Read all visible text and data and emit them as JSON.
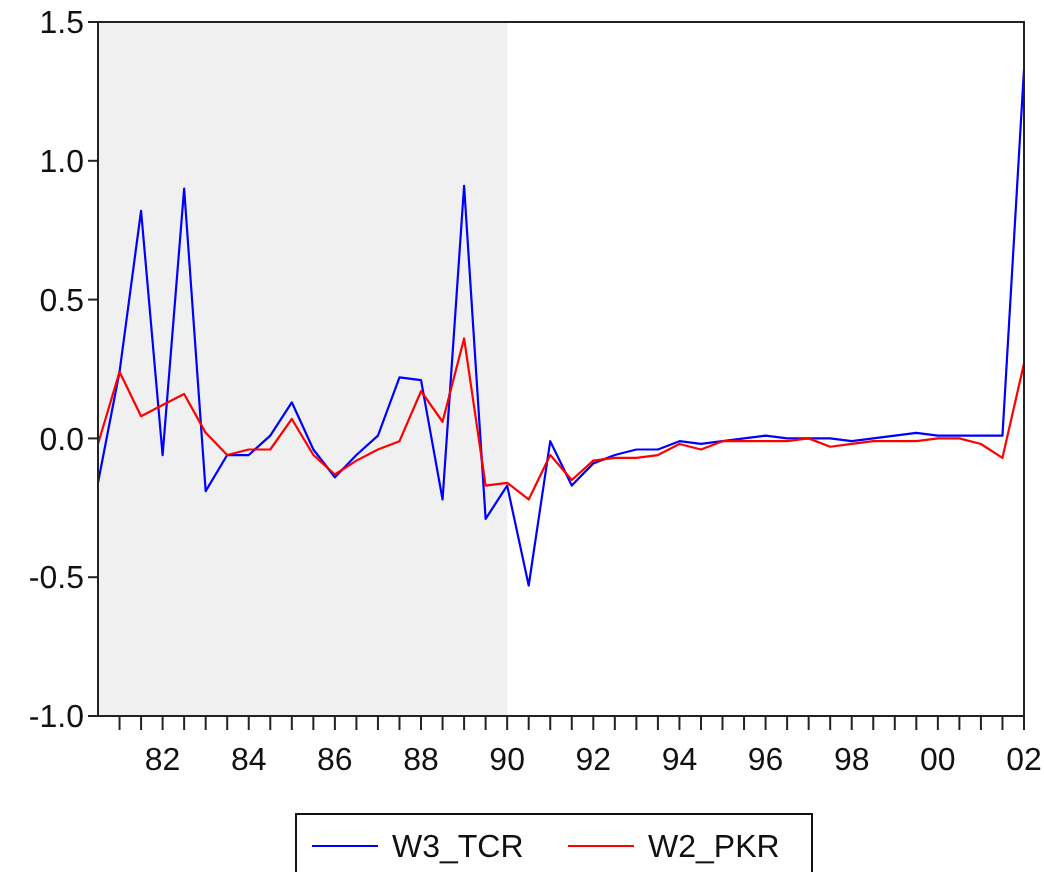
{
  "chart_data": {
    "type": "line",
    "x": [
      1980.5,
      1981,
      1981.5,
      1982,
      1982.5,
      1983,
      1983.5,
      1984,
      1984.5,
      1985,
      1985.5,
      1986,
      1986.5,
      1987,
      1987.5,
      1988,
      1988.5,
      1989,
      1989.5,
      1990,
      1990.5,
      1991,
      1991.5,
      1992,
      1992.5,
      1993,
      1993.5,
      1994,
      1994.5,
      1995,
      1995.5,
      1996,
      1996.5,
      1997,
      1997.5,
      1998,
      1998.5,
      1999,
      1999.5,
      2000,
      2000.5,
      2001,
      2001.5,
      2002
    ],
    "series": [
      {
        "name": "W3_TCR",
        "color": "#0000ff",
        "values": [
          -0.16,
          0.24,
          0.82,
          -0.06,
          0.9,
          -0.19,
          -0.06,
          -0.06,
          0.01,
          0.13,
          -0.04,
          -0.14,
          -0.06,
          0.01,
          0.22,
          0.21,
          -0.22,
          0.91,
          -0.29,
          -0.17,
          -0.53,
          -0.01,
          -0.17,
          -0.09,
          -0.06,
          -0.04,
          -0.04,
          -0.01,
          -0.02,
          -0.01,
          0.0,
          0.01,
          0.0,
          0.0,
          0.0,
          -0.01,
          0.0,
          0.01,
          0.02,
          0.01,
          0.01,
          0.01,
          0.01,
          1.33
        ]
      },
      {
        "name": "W2_PKR",
        "color": "#ff0000",
        "values": [
          -0.02,
          0.24,
          0.08,
          0.12,
          0.16,
          0.02,
          -0.06,
          -0.04,
          -0.04,
          0.07,
          -0.06,
          -0.13,
          -0.08,
          -0.04,
          -0.01,
          0.17,
          0.06,
          0.36,
          -0.17,
          -0.16,
          -0.22,
          -0.06,
          -0.15,
          -0.08,
          -0.07,
          -0.07,
          -0.06,
          -0.02,
          -0.04,
          -0.01,
          -0.01,
          -0.01,
          -0.01,
          0.0,
          -0.03,
          -0.02,
          -0.01,
          -0.01,
          -0.01,
          0.0,
          0.0,
          -0.02,
          -0.07,
          0.27
        ]
      }
    ],
    "xlim": [
      1980.5,
      2002
    ],
    "xticks": [
      {
        "value": 1981,
        "label": null
      },
      {
        "value": 1981.5,
        "label": null
      },
      {
        "value": 1982,
        "label": "82"
      },
      {
        "value": 1982.5,
        "label": null
      },
      {
        "value": 1983,
        "label": null
      },
      {
        "value": 1983.5,
        "label": null
      },
      {
        "value": 1984,
        "label": "84"
      },
      {
        "value": 1984.5,
        "label": null
      },
      {
        "value": 1985,
        "label": null
      },
      {
        "value": 1985.5,
        "label": null
      },
      {
        "value": 1986,
        "label": "86"
      },
      {
        "value": 1986.5,
        "label": null
      },
      {
        "value": 1987,
        "label": null
      },
      {
        "value": 1987.5,
        "label": null
      },
      {
        "value": 1988,
        "label": "88"
      },
      {
        "value": 1988.5,
        "label": null
      },
      {
        "value": 1989,
        "label": null
      },
      {
        "value": 1989.5,
        "label": null
      },
      {
        "value": 1990,
        "label": "90"
      },
      {
        "value": 1990.5,
        "label": null
      },
      {
        "value": 1991,
        "label": null
      },
      {
        "value": 1991.5,
        "label": null
      },
      {
        "value": 1992,
        "label": "92"
      },
      {
        "value": 1992.5,
        "label": null
      },
      {
        "value": 1993,
        "label": null
      },
      {
        "value": 1993.5,
        "label": null
      },
      {
        "value": 1994,
        "label": "94"
      },
      {
        "value": 1994.5,
        "label": null
      },
      {
        "value": 1995,
        "label": null
      },
      {
        "value": 1995.5,
        "label": null
      },
      {
        "value": 1996,
        "label": "96"
      },
      {
        "value": 1996.5,
        "label": null
      },
      {
        "value": 1997,
        "label": null
      },
      {
        "value": 1997.5,
        "label": null
      },
      {
        "value": 1998,
        "label": "98"
      },
      {
        "value": 1998.5,
        "label": null
      },
      {
        "value": 1999,
        "label": null
      },
      {
        "value": 1999.5,
        "label": null
      },
      {
        "value": 2000,
        "label": "00"
      },
      {
        "value": 2000.5,
        "label": null
      },
      {
        "value": 2001,
        "label": null
      },
      {
        "value": 2001.5,
        "label": null
      },
      {
        "value": 2002,
        "label": "02"
      }
    ],
    "ylim": [
      -1.0,
      1.5
    ],
    "yticks": [
      {
        "value": -1.0,
        "label": "-1.0"
      },
      {
        "value": -0.5,
        "label": "-0.5"
      },
      {
        "value": 0.0,
        "label": "0.0"
      },
      {
        "value": 0.5,
        "label": "0.5"
      },
      {
        "value": 1.0,
        "label": "1.0"
      },
      {
        "value": 1.5,
        "label": "1.5"
      }
    ],
    "bands": [
      {
        "axis": "x",
        "from": 1980.5,
        "to": 1990,
        "color": "#f0f0f0"
      }
    ],
    "grid": false,
    "legend": "bottom",
    "line_style": "solid",
    "marker": "none"
  }
}
